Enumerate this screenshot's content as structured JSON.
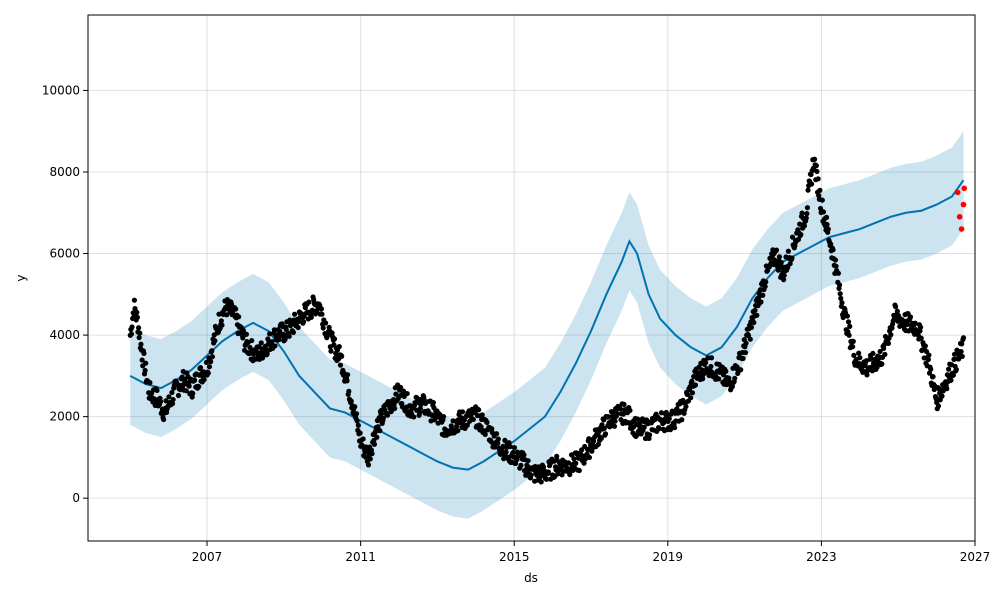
{
  "chart_data": {
    "type": "scatter",
    "title": "",
    "xlabel": "ds",
    "ylabel": "y",
    "xlim": [
      2003.9,
      2027.0
    ],
    "ylim": [
      -1050,
      11850
    ],
    "grid": true,
    "legend": "none",
    "colors": {
      "observed": "#000000",
      "forecast_points": "#ff0000",
      "trend_line": "#0072b2",
      "uncertainty_band": "#0072b2",
      "grid": "#cccccc"
    },
    "x_ticks": [
      2007,
      2011,
      2015,
      2019,
      2023,
      2027
    ],
    "x_tick_labels": [
      "2007",
      "2011",
      "2015",
      "2019",
      "2023",
      "2027"
    ],
    "y_ticks": [
      0,
      2000,
      4000,
      6000,
      8000,
      10000
    ],
    "y_tick_labels": [
      "0",
      "2000",
      "4000",
      "6000",
      "8000",
      "10000"
    ],
    "observed_path": [
      [
        2005.0,
        4000
      ],
      [
        2005.1,
        4700
      ],
      [
        2005.2,
        4300
      ],
      [
        2005.3,
        3600
      ],
      [
        2005.5,
        2600
      ],
      [
        2005.7,
        2450
      ],
      [
        2005.9,
        2100
      ],
      [
        2006.0,
        2300
      ],
      [
        2006.2,
        2700
      ],
      [
        2006.4,
        2900
      ],
      [
        2006.6,
        2700
      ],
      [
        2006.8,
        3000
      ],
      [
        2007.0,
        3200
      ],
      [
        2007.3,
        4300
      ],
      [
        2007.5,
        4700
      ],
      [
        2007.7,
        4500
      ],
      [
        2008.0,
        3800
      ],
      [
        2008.3,
        3500
      ],
      [
        2008.5,
        3700
      ],
      [
        2008.8,
        4000
      ],
      [
        2009.1,
        4100
      ],
      [
        2009.5,
        4500
      ],
      [
        2009.9,
        4800
      ],
      [
        2010.2,
        3900
      ],
      [
        2010.5,
        3400
      ],
      [
        2010.8,
        2300
      ],
      [
        2011.0,
        1400
      ],
      [
        2011.2,
        1000
      ],
      [
        2011.4,
        1700
      ],
      [
        2011.7,
        2200
      ],
      [
        2012.0,
        2600
      ],
      [
        2012.3,
        2200
      ],
      [
        2012.6,
        2300
      ],
      [
        2012.9,
        2100
      ],
      [
        2013.2,
        1700
      ],
      [
        2013.6,
        1900
      ],
      [
        2014.0,
        2000
      ],
      [
        2014.3,
        1700
      ],
      [
        2014.6,
        1300
      ],
      [
        2014.9,
        1100
      ],
      [
        2015.2,
        900
      ],
      [
        2015.5,
        600
      ],
      [
        2015.8,
        600
      ],
      [
        2016.1,
        800
      ],
      [
        2016.4,
        800
      ],
      [
        2016.7,
        900
      ],
      [
        2017.0,
        1300
      ],
      [
        2017.3,
        1700
      ],
      [
        2017.6,
        2000
      ],
      [
        2017.9,
        2100
      ],
      [
        2018.2,
        1700
      ],
      [
        2018.5,
        1700
      ],
      [
        2018.8,
        1900
      ],
      [
        2019.1,
        1900
      ],
      [
        2019.4,
        2200
      ],
      [
        2019.7,
        2900
      ],
      [
        2020.0,
        3300
      ],
      [
        2020.3,
        3100
      ],
      [
        2020.6,
        2800
      ],
      [
        2020.9,
        3400
      ],
      [
        2021.2,
        4300
      ],
      [
        2021.5,
        5300
      ],
      [
        2021.8,
        6000
      ],
      [
        2022.0,
        5500
      ],
      [
        2022.3,
        6300
      ],
      [
        2022.6,
        7000
      ],
      [
        2022.8,
        8300
      ],
      [
        2023.0,
        7200
      ],
      [
        2023.3,
        6000
      ],
      [
        2023.6,
        4500
      ],
      [
        2023.9,
        3400
      ],
      [
        2024.2,
        3200
      ],
      [
        2024.6,
        3500
      ],
      [
        2024.9,
        4500
      ],
      [
        2025.2,
        4300
      ],
      [
        2025.5,
        4200
      ],
      [
        2025.8,
        3300
      ],
      [
        2026.0,
        2400
      ],
      [
        2026.3,
        3000
      ],
      [
        2026.7,
        3700
      ]
    ],
    "trend_path": [
      [
        2005.0,
        3000
      ],
      [
        2005.4,
        2800
      ],
      [
        2005.8,
        2700
      ],
      [
        2006.2,
        2900
      ],
      [
        2006.6,
        3150
      ],
      [
        2007.0,
        3500
      ],
      [
        2007.4,
        3850
      ],
      [
        2007.8,
        4100
      ],
      [
        2008.2,
        4300
      ],
      [
        2008.6,
        4100
      ],
      [
        2009.0,
        3600
      ],
      [
        2009.4,
        3000
      ],
      [
        2009.8,
        2600
      ],
      [
        2010.2,
        2200
      ],
      [
        2010.6,
        2100
      ],
      [
        2011.0,
        1900
      ],
      [
        2011.4,
        1700
      ],
      [
        2011.8,
        1500
      ],
      [
        2012.2,
        1300
      ],
      [
        2012.6,
        1100
      ],
      [
        2013.0,
        900
      ],
      [
        2013.4,
        750
      ],
      [
        2013.8,
        700
      ],
      [
        2014.2,
        900
      ],
      [
        2014.6,
        1150
      ],
      [
        2015.0,
        1400
      ],
      [
        2015.4,
        1700
      ],
      [
        2015.8,
        2000
      ],
      [
        2016.2,
        2600
      ],
      [
        2016.6,
        3300
      ],
      [
        2017.0,
        4100
      ],
      [
        2017.4,
        5000
      ],
      [
        2017.8,
        5800
      ],
      [
        2018.0,
        6300
      ],
      [
        2018.2,
        6000
      ],
      [
        2018.5,
        5000
      ],
      [
        2018.8,
        4400
      ],
      [
        2019.2,
        4000
      ],
      [
        2019.6,
        3700
      ],
      [
        2020.0,
        3500
      ],
      [
        2020.4,
        3700
      ],
      [
        2020.8,
        4200
      ],
      [
        2021.2,
        4900
      ],
      [
        2021.6,
        5400
      ],
      [
        2022.0,
        5800
      ],
      [
        2022.4,
        6000
      ],
      [
        2022.8,
        6200
      ],
      [
        2023.2,
        6400
      ],
      [
        2023.6,
        6500
      ],
      [
        2024.0,
        6600
      ],
      [
        2024.4,
        6750
      ],
      [
        2024.8,
        6900
      ],
      [
        2025.2,
        7000
      ],
      [
        2025.6,
        7050
      ],
      [
        2026.0,
        7200
      ],
      [
        2026.4,
        7400
      ],
      [
        2026.7,
        7800
      ]
    ],
    "band_width": 1200,
    "forecast_points": [
      [
        2026.55,
        7500
      ],
      [
        2026.6,
        6900
      ],
      [
        2026.65,
        6600
      ],
      [
        2026.7,
        7200
      ],
      [
        2026.72,
        7600
      ]
    ]
  }
}
